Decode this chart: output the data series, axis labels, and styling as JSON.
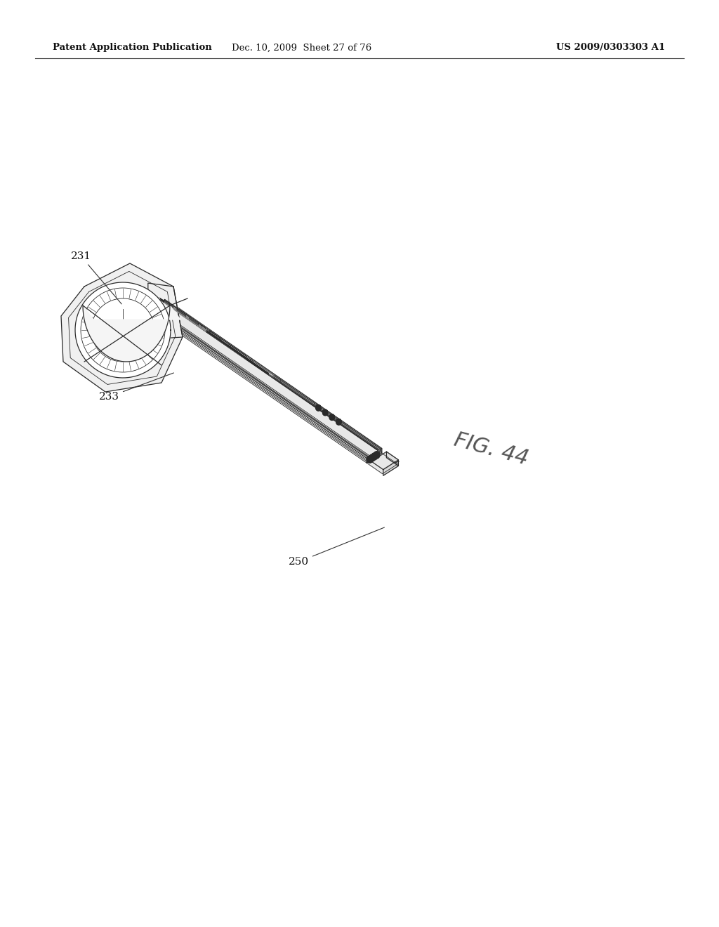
{
  "background_color": "#ffffff",
  "page_width": 10.24,
  "page_height": 13.2,
  "header_text_left": "Patent Application Publication",
  "header_text_mid": "Dec. 10, 2009  Sheet 27 of 76",
  "header_text_right": "US 2009/0303303 A1",
  "fig_label": "FIG. 44",
  "label_231": "231",
  "label_233": "233",
  "label_250": "250"
}
